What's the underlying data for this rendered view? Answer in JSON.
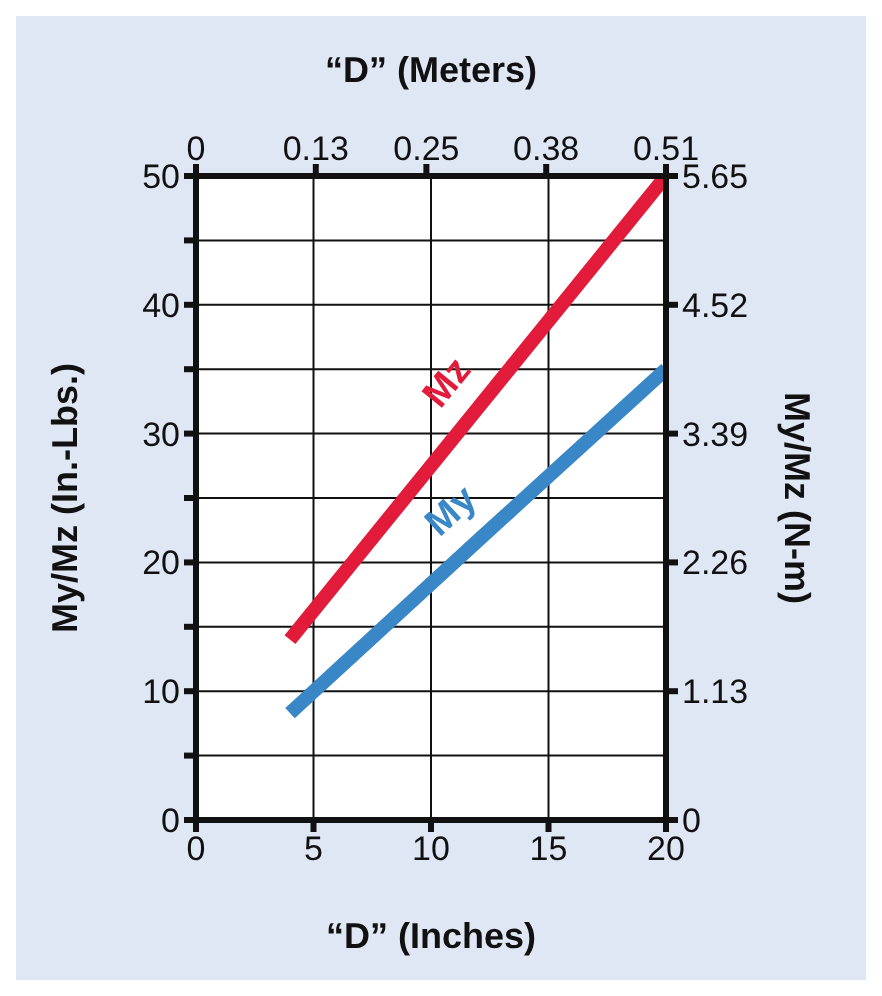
{
  "chart_data": {
    "type": "line",
    "xlabel": "“D” (Inches)",
    "ylabel": "My/Mz (In.-Lbs.)",
    "x2label": "“D” (Meters)",
    "y2label": "My/Mz (N-m)",
    "x": [
      4,
      12,
      20
    ],
    "series": [
      {
        "name": "Mz",
        "color": "#e31b3a",
        "values": [
          14,
          32,
          50
        ]
      },
      {
        "name": "My",
        "color": "#3a87c8",
        "values": [
          8.3,
          21.7,
          35
        ]
      }
    ],
    "xlim": [
      0,
      20
    ],
    "xticks": [
      0,
      5,
      10,
      15,
      20
    ],
    "x2lim": [
      0,
      0.51
    ],
    "x2ticks": [
      0,
      0.13,
      0.25,
      0.38,
      0.51
    ],
    "ylim": [
      0,
      50
    ],
    "yticks": [
      0,
      {
        "value": 5,
        "label": null
      },
      10,
      {
        "value": 15,
        "label": null
      },
      20,
      {
        "value": 25,
        "label": null
      },
      30,
      {
        "value": 35,
        "label": null
      },
      40,
      {
        "value": 45,
        "label": null
      },
      50
    ],
    "y2lim": [
      0,
      5.65
    ],
    "y2ticks": [
      0,
      1.13,
      2.26,
      3.39,
      4.52,
      5.65
    ],
    "grid": true,
    "legend": false,
    "marker": "none",
    "line_style": "solid"
  }
}
